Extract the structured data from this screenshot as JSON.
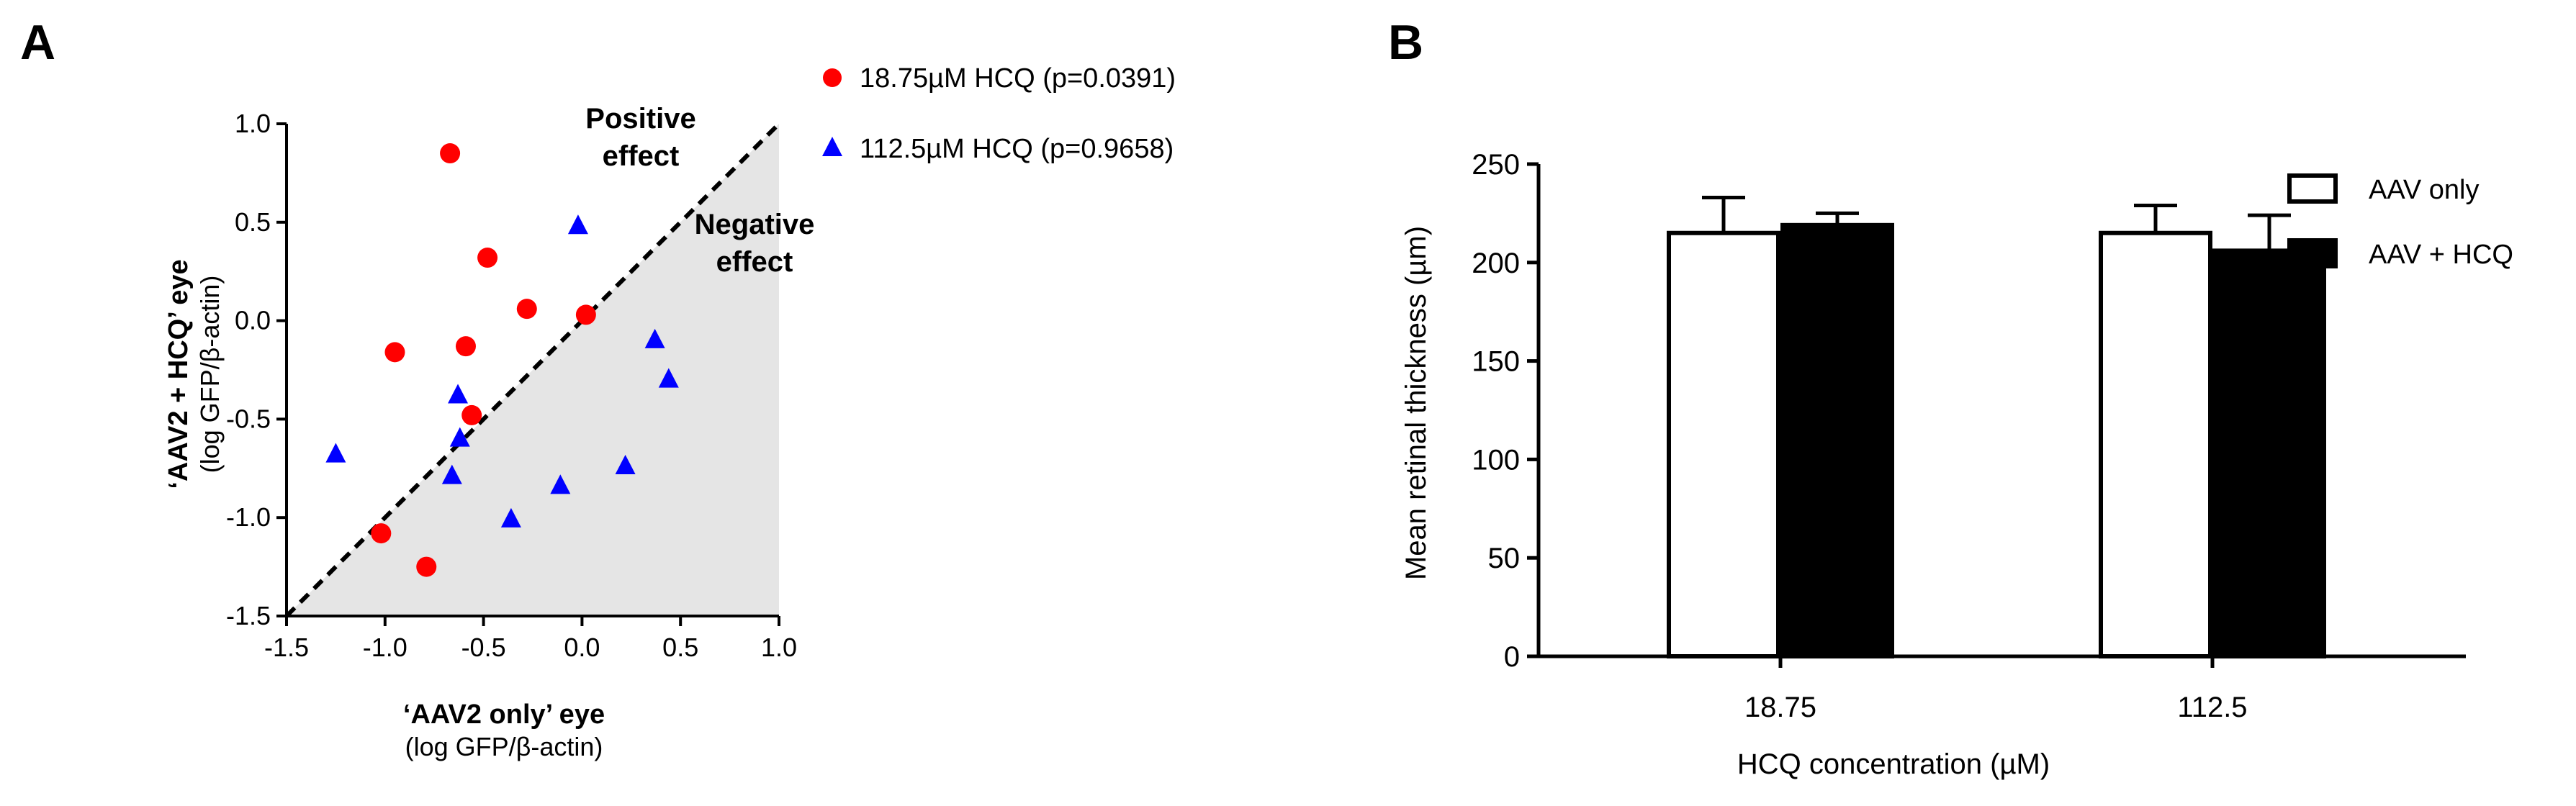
{
  "panels": [
    {
      "letter": "A",
      "chart_data": {
        "type": "scatter",
        "xlabel": "‘AAV2 only’ eye",
        "xlabel_sub": "(log GFP/β-actin)",
        "ylabel": "‘AAV2 + HCQ’ eye",
        "ylabel_sub": "(log GFP/β-actin)",
        "xlim": [
          -1.5,
          1.0
        ],
        "ylim": [
          -1.5,
          1.0
        ],
        "xticks": [
          -1.5,
          -1.0,
          -0.5,
          0.0,
          0.5,
          1.0
        ],
        "yticks": [
          -1.5,
          -1.0,
          -0.5,
          0.0,
          0.5,
          1.0
        ],
        "xtick_labels": [
          "-1.5",
          "-1.0",
          "-0.5",
          "0.0",
          "0.5",
          "1.0"
        ],
        "ytick_labels": [
          "-1.5",
          "-1.0",
          "-0.5",
          "0.0",
          "0.5",
          "1.0"
        ],
        "identity_line": true,
        "shaded_region": "below-identity",
        "shade_color": "#e5e5e5",
        "annotations": [
          {
            "lines": [
              "Positive",
              "effect"
            ],
            "position": "above-identity"
          },
          {
            "lines": [
              "Negative",
              "effect"
            ],
            "position": "below-identity"
          }
        ],
        "legend_position": "right",
        "series": [
          {
            "name": "18.75µM HCQ (p=0.0391)",
            "marker": "circle",
            "color": "#ff0000",
            "points": [
              [
                -0.67,
                0.85
              ],
              [
                -0.48,
                0.32
              ],
              [
                -0.28,
                0.06
              ],
              [
                0.02,
                0.03
              ],
              [
                -0.95,
                -0.16
              ],
              [
                -0.59,
                -0.13
              ],
              [
                -0.56,
                -0.48
              ],
              [
                -1.02,
                -1.08
              ],
              [
                -0.79,
                -1.25
              ]
            ]
          },
          {
            "name": "112.5µM HCQ (p=0.9658)",
            "marker": "triangle",
            "color": "#0000ff",
            "points": [
              [
                -0.02,
                0.48
              ],
              [
                0.37,
                -0.1
              ],
              [
                0.44,
                -0.3
              ],
              [
                -0.63,
                -0.38
              ],
              [
                -0.62,
                -0.6
              ],
              [
                -1.25,
                -0.68
              ],
              [
                -0.66,
                -0.79
              ],
              [
                0.22,
                -0.74
              ],
              [
                -0.11,
                -0.84
              ],
              [
                -0.36,
                -1.01
              ]
            ]
          }
        ]
      }
    },
    {
      "letter": "B",
      "chart_data": {
        "type": "bar",
        "categories": [
          "18.75",
          "112.5"
        ],
        "xlabel": "HCQ concentration (µM)",
        "ylabel": "Mean retinal thickness (µm)",
        "ylim": [
          0,
          250
        ],
        "yticks": [
          0,
          50,
          100,
          150,
          200,
          250
        ],
        "legend_position": "top-right",
        "series": [
          {
            "name": "AAV only",
            "fill": "#ffffff",
            "values": [
              215,
              215
            ],
            "errors": [
              18,
              14
            ]
          },
          {
            "name": "AAV + HCQ",
            "fill": "#000000",
            "values": [
              219,
              206
            ],
            "errors": [
              6,
              18
            ]
          }
        ]
      }
    }
  ]
}
